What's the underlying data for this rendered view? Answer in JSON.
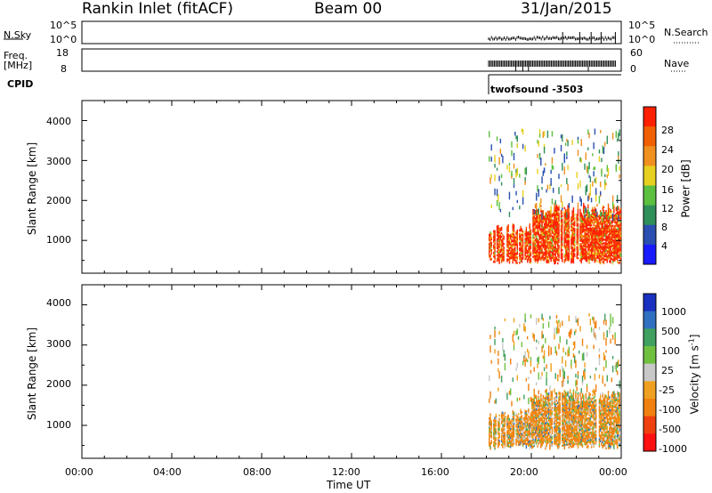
{
  "header": {
    "station": "Rankin Inlet (fitACF)",
    "beam": "Beam 00",
    "date": "31/Jan/2015"
  },
  "summary_panels": {
    "nsky_label": "N.Sky",
    "nsearch_label": "N.Search",
    "freq_label_1": "Freq.",
    "freq_label_2": "[MHz]",
    "nave_label": "Nave",
    "cpid_label": "CPID",
    "cpid_value": "twofsound -3503",
    "noise_ticks_left": [
      "10^5",
      "10^0"
    ],
    "noise_ticks_right": [
      "10^5",
      "10^0"
    ],
    "freq_ticks": [
      "18",
      "8"
    ],
    "nave_ticks": [
      "60",
      "0"
    ]
  },
  "x_axis": {
    "label": "Time UT",
    "ticks": [
      "00:00",
      "04:00",
      "08:00",
      "12:00",
      "16:00",
      "20:00",
      "00:00"
    ]
  },
  "y_axis": {
    "label": "Slant Range [km]",
    "ticks": [
      "1000",
      "2000",
      "3000",
      "4000"
    ]
  },
  "power_scale": {
    "label": "Power [dB]",
    "ticks": [
      "4",
      "8",
      "12",
      "16",
      "20",
      "24",
      "28"
    ],
    "colors": [
      "#1a1aff",
      "#2a4fb0",
      "#2f8f5a",
      "#5cc040",
      "#e8d020",
      "#f09020",
      "#f06000",
      "#ff2000"
    ]
  },
  "velocity_scale": {
    "label": "Velocity [m s",
    "label_sup": "-1",
    "label_end": "]",
    "ticks": [
      "1000",
      "500",
      "100",
      "25",
      "-25",
      "-100",
      "-500",
      "-1000"
    ],
    "colors": [
      "#1a30c0",
      "#3070c0",
      "#40a060",
      "#70c040",
      "#c8c8c8",
      "#f0a020",
      "#f08010",
      "#f04010",
      "#ff1010"
    ]
  },
  "chart_data": [
    {
      "type": "heatmap",
      "title": "",
      "xlabel": "Time UT",
      "ylabel": "Slant Range [km]",
      "xlim": [
        "00:00",
        "24:00"
      ],
      "ylim": [
        180,
        4500
      ],
      "colorbar": "Power [dB]",
      "colorbar_range": [
        0,
        30
      ],
      "data_coverage": {
        "start_time": "18:00",
        "end_time": "24:00"
      },
      "main_band": {
        "range_km": [
          400,
          1600
        ],
        "typical_value_db": 28
      },
      "scattered_echoes": {
        "range_km": [
          1600,
          3800
        ],
        "typical_value_db": 14
      }
    },
    {
      "type": "heatmap",
      "title": "",
      "xlabel": "Time UT",
      "ylabel": "Slant Range [km]",
      "xlim": [
        "00:00",
        "24:00"
      ],
      "ylim": [
        180,
        4500
      ],
      "colorbar": "Velocity [m s^-1]",
      "colorbar_ticks": [
        1000,
        500,
        100,
        25,
        -25,
        -100,
        -500,
        -1000
      ],
      "data_coverage": {
        "start_time": "18:00",
        "end_time": "24:00"
      },
      "main_band": {
        "range_km": [
          400,
          1600
        ],
        "typical_value_ms": -300
      },
      "scattered_echoes": {
        "range_km": [
          1600,
          3800
        ],
        "typical_value_ms": -100
      }
    }
  ]
}
